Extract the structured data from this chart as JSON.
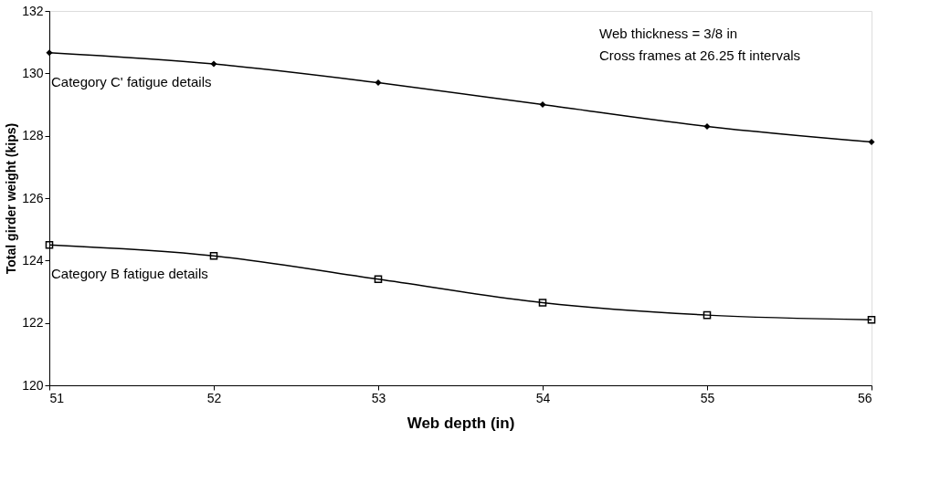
{
  "chart_data": {
    "type": "line",
    "xlabel": "Web depth (in)",
    "ylabel": "Total girder weight (kips)",
    "x": [
      51,
      52,
      53,
      54,
      55,
      56
    ],
    "series": [
      {
        "name": "Category C'  fatigue details",
        "color": "#000000",
        "marker": "diamond",
        "values": [
          130.66,
          130.3,
          129.7,
          129.0,
          128.3,
          127.8
        ]
      },
      {
        "name": "Category B  fatigue details",
        "color": "#000000",
        "marker": "square",
        "values": [
          124.5,
          124.15,
          123.4,
          122.65,
          122.25,
          122.1
        ]
      }
    ],
    "xlim": [
      51,
      56
    ],
    "xticks": [
      51,
      52,
      53,
      54,
      55,
      56
    ],
    "ylim": [
      120,
      132
    ],
    "yticks": [
      120,
      122,
      124,
      126,
      128,
      130,
      132
    ],
    "grid": false,
    "line_style": "solid",
    "annotations": [
      "Web thickness = 3/8 in",
      "Cross frames at 26.25 ft intervals"
    ]
  }
}
